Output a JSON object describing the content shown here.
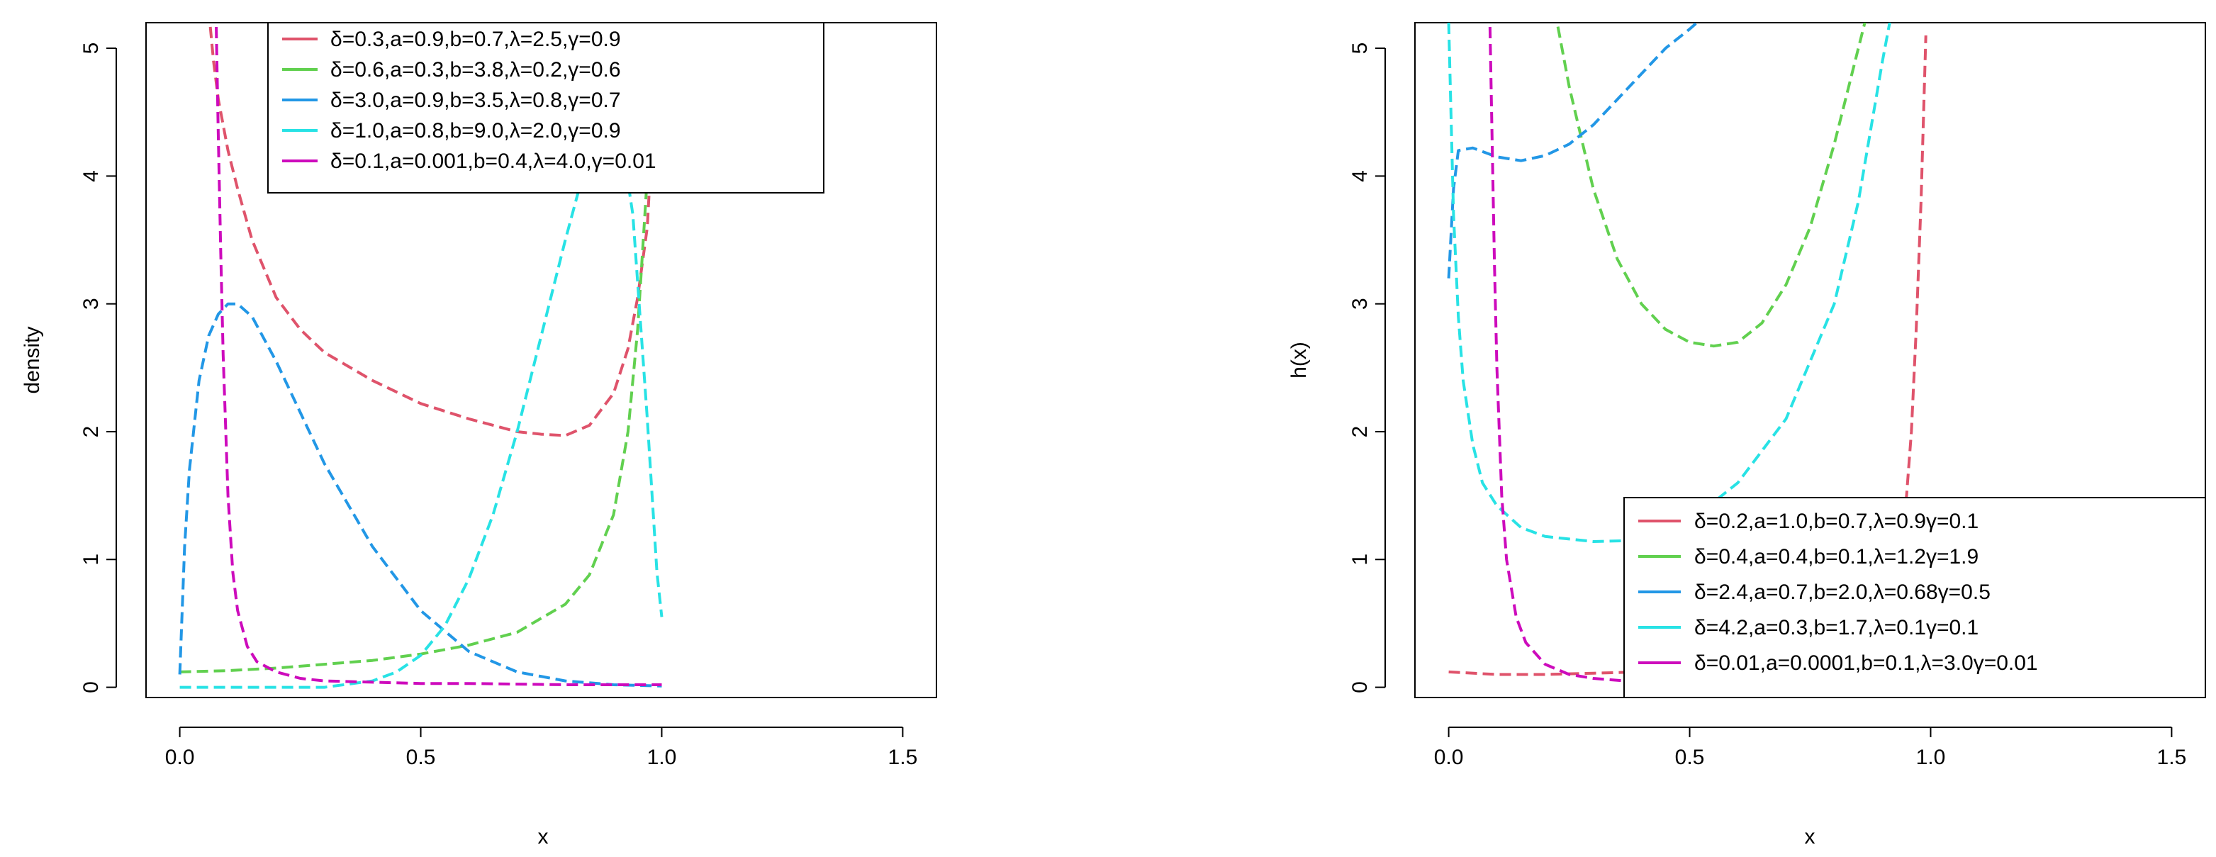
{
  "chart_data": [
    {
      "type": "line",
      "title": "",
      "xlabel": "x",
      "ylabel": "density",
      "xlim": [
        -0.07,
        1.57
      ],
      "ylim": [
        -0.08,
        5.2
      ],
      "xticks": [
        0,
        0.5,
        1,
        1.5
      ],
      "xtick_labels": [
        "0.0",
        "0.5",
        "1.0",
        "1.5"
      ],
      "yticks": [
        0,
        1,
        2,
        3,
        4,
        5
      ],
      "ytick_labels": [
        "0",
        "1",
        "2",
        "3",
        "4",
        "5"
      ],
      "grid": false,
      "legend_position": "top-center",
      "series": [
        {
          "name": "δ=0.3,a=0.9,b=0.7,λ=2.5,γ=0.9",
          "color": "#DF536B",
          "line_style": "dashed",
          "x": [
            0.06,
            0.07,
            0.08,
            0.1,
            0.12,
            0.15,
            0.2,
            0.25,
            0.3,
            0.4,
            0.5,
            0.6,
            0.7,
            0.75,
            0.8,
            0.85,
            0.9,
            0.93,
            0.95,
            0.97,
            0.98,
            0.99
          ],
          "y": [
            5.3,
            4.9,
            4.6,
            4.2,
            3.9,
            3.5,
            3.05,
            2.8,
            2.62,
            2.4,
            2.22,
            2.1,
            2.0,
            1.98,
            1.97,
            2.05,
            2.3,
            2.65,
            3.05,
            3.6,
            4.3,
            5.3
          ]
        },
        {
          "name": "δ=0.6,a=0.3,b=3.8,λ=0.2,γ=0.6",
          "color": "#61D04F",
          "line_style": "dashed",
          "x": [
            0.0,
            0.1,
            0.2,
            0.3,
            0.4,
            0.5,
            0.6,
            0.7,
            0.8,
            0.85,
            0.9,
            0.93,
            0.95,
            0.97,
            0.98,
            0.99
          ],
          "y": [
            0.12,
            0.13,
            0.15,
            0.18,
            0.21,
            0.26,
            0.33,
            0.43,
            0.65,
            0.88,
            1.35,
            2.0,
            2.8,
            4.0,
            4.8,
            5.3
          ]
        },
        {
          "name": "δ=3.0,a=0.9,b=3.5,λ=0.8,γ=0.7",
          "color": "#2297E6",
          "line_style": "dashed",
          "x": [
            0.0,
            0.01,
            0.02,
            0.04,
            0.06,
            0.08,
            0.1,
            0.12,
            0.15,
            0.2,
            0.25,
            0.3,
            0.4,
            0.5,
            0.6,
            0.7,
            0.8,
            0.9,
            1.0
          ],
          "y": [
            0.1,
            1.1,
            1.7,
            2.4,
            2.75,
            2.92,
            3.0,
            3.0,
            2.9,
            2.55,
            2.15,
            1.75,
            1.1,
            0.6,
            0.28,
            0.12,
            0.05,
            0.02,
            0.01
          ]
        },
        {
          "name": "δ=1.0,a=0.8,b=9.0,λ=2.0,γ=0.9",
          "color": "#28E2E5",
          "line_style": "dashed",
          "x": [
            0.0,
            0.1,
            0.2,
            0.3,
            0.4,
            0.45,
            0.5,
            0.55,
            0.6,
            0.65,
            0.7,
            0.75,
            0.8,
            0.85,
            0.88,
            0.91,
            0.94,
            0.97,
            0.99,
            1.0
          ],
          "y": [
            0.0,
            0.0,
            0.0,
            0.0,
            0.05,
            0.12,
            0.25,
            0.48,
            0.85,
            1.35,
            2.0,
            2.75,
            3.5,
            4.2,
            4.45,
            4.45,
            3.7,
            2.1,
            0.9,
            0.55
          ]
        },
        {
          "name": "δ=0.1,a=0.001,b=0.4,λ=4.0,γ=0.01",
          "color": "#CD0BBC",
          "line_style": "dashed",
          "x": [
            0.075,
            0.08,
            0.085,
            0.09,
            0.1,
            0.11,
            0.12,
            0.14,
            0.16,
            0.2,
            0.25,
            0.3,
            0.4,
            0.5,
            0.6,
            0.8,
            1.0
          ],
          "y": [
            5.3,
            4.3,
            3.4,
            2.6,
            1.5,
            0.9,
            0.6,
            0.32,
            0.2,
            0.12,
            0.07,
            0.05,
            0.04,
            0.03,
            0.03,
            0.02,
            0.02
          ]
        }
      ]
    },
    {
      "type": "line",
      "title": "",
      "xlabel": "x",
      "ylabel": "h(x)",
      "xlim": [
        -0.07,
        1.57
      ],
      "ylim": [
        -0.08,
        5.2
      ],
      "xticks": [
        0,
        0.5,
        1,
        1.5
      ],
      "xtick_labels": [
        "0.0",
        "0.5",
        "1.0",
        "1.5"
      ],
      "yticks": [
        0,
        1,
        2,
        3,
        4,
        5
      ],
      "ytick_labels": [
        "0",
        "1",
        "2",
        "3",
        "4",
        "5"
      ],
      "grid": false,
      "legend_position": "bottom-right",
      "series": [
        {
          "name": "δ=0.2,a=1.0,b=0.7,λ=0.9γ=0.1",
          "color": "#DF536B",
          "line_style": "dashed",
          "x": [
            0.0,
            0.1,
            0.2,
            0.3,
            0.4,
            0.5,
            0.6,
            0.7,
            0.8,
            0.85,
            0.9,
            0.93,
            0.95,
            0.96,
            0.97,
            0.98,
            0.99
          ],
          "y": [
            0.12,
            0.1,
            0.1,
            0.11,
            0.12,
            0.14,
            0.17,
            0.21,
            0.3,
            0.4,
            0.6,
            0.95,
            1.5,
            2.0,
            2.8,
            3.8,
            5.1
          ]
        },
        {
          "name": "δ=0.4,a=0.4,b=0.1,λ=1.2γ=1.9",
          "color": "#61D04F",
          "line_style": "dashed",
          "x": [
            0.22,
            0.25,
            0.3,
            0.35,
            0.4,
            0.45,
            0.5,
            0.55,
            0.6,
            0.65,
            0.7,
            0.75,
            0.8,
            0.85,
            0.87
          ],
          "y": [
            5.3,
            4.7,
            3.9,
            3.35,
            3.0,
            2.8,
            2.7,
            2.67,
            2.7,
            2.85,
            3.15,
            3.6,
            4.25,
            5.0,
            5.3
          ]
        },
        {
          "name": "δ=2.4,a=0.7,b=2.0,λ=0.68γ=0.5",
          "color": "#2297E6",
          "line_style": "dashed",
          "x": [
            0.0,
            0.01,
            0.02,
            0.05,
            0.1,
            0.15,
            0.2,
            0.25,
            0.3,
            0.35,
            0.4,
            0.45,
            0.5,
            0.53
          ],
          "y": [
            3.2,
            3.9,
            4.2,
            4.22,
            4.15,
            4.12,
            4.16,
            4.25,
            4.4,
            4.6,
            4.8,
            5.0,
            5.15,
            5.25
          ]
        },
        {
          "name": "δ=4.2,a=0.3,b=1.7,λ=0.1γ=0.1",
          "color": "#28E2E5",
          "line_style": "dashed",
          "x": [
            0.0,
            0.01,
            0.02,
            0.03,
            0.05,
            0.07,
            0.1,
            0.15,
            0.2,
            0.3,
            0.4,
            0.5,
            0.6,
            0.7,
            0.8,
            0.85,
            0.9,
            0.92
          ],
          "y": [
            5.2,
            3.7,
            2.9,
            2.4,
            1.9,
            1.6,
            1.42,
            1.25,
            1.18,
            1.14,
            1.15,
            1.3,
            1.6,
            2.1,
            3.0,
            3.8,
            4.9,
            5.3
          ]
        },
        {
          "name": "δ=0.01,a=0.0001,b=0.1,λ=3.0γ=0.01",
          "color": "#CD0BBC",
          "line_style": "dashed",
          "x": [
            0.085,
            0.09,
            0.095,
            0.1,
            0.11,
            0.12,
            0.14,
            0.16,
            0.2,
            0.25,
            0.3,
            0.4,
            0.5,
            0.6,
            0.7,
            0.8
          ],
          "y": [
            5.3,
            4.3,
            3.3,
            2.5,
            1.5,
            1.0,
            0.55,
            0.35,
            0.18,
            0.1,
            0.07,
            0.04,
            0.03,
            0.02,
            0.02,
            0.02
          ]
        }
      ]
    }
  ]
}
